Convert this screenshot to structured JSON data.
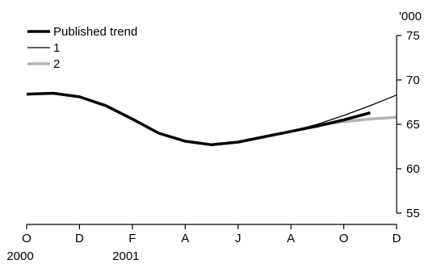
{
  "chart_data": {
    "type": "line",
    "y_unit": "'000",
    "ylim": [
      55,
      75
    ],
    "y_ticks": [
      55,
      60,
      65,
      70,
      75
    ],
    "y_axis_side": "right",
    "grid": false,
    "legend_position": "top-left",
    "x": [
      "2000-10",
      "2000-11",
      "2000-12",
      "2001-01",
      "2001-02",
      "2001-03",
      "2001-04",
      "2001-05",
      "2001-06",
      "2001-07",
      "2001-08",
      "2001-09",
      "2001-10",
      "2001-11",
      "2001-12"
    ],
    "x_ticks": [
      {
        "x": "2000-10",
        "label": "O"
      },
      {
        "x": "2000-12",
        "label": "D"
      },
      {
        "x": "2001-02",
        "label": "F"
      },
      {
        "x": "2001-04",
        "label": "A"
      },
      {
        "x": "2001-06",
        "label": "J"
      },
      {
        "x": "2001-08",
        "label": "A"
      },
      {
        "x": "2001-10",
        "label": "O"
      },
      {
        "x": "2001-12",
        "label": "D"
      }
    ],
    "year_labels": [
      {
        "x": "2000-10",
        "label": "2000"
      },
      {
        "x": "2001-02",
        "label": "2001"
      }
    ],
    "series": [
      {
        "name": "Published trend",
        "color": "#000000",
        "style": "thick",
        "values": [
          68.4,
          68.5,
          68.1,
          67.1,
          65.6,
          64.0,
          63.1,
          62.7,
          63.0,
          63.6,
          64.2,
          64.8,
          65.5,
          66.3,
          null
        ]
      },
      {
        "name": "1",
        "color": "#000000",
        "style": "thin",
        "values": [
          null,
          null,
          null,
          null,
          null,
          null,
          null,
          null,
          null,
          null,
          64.2,
          65.0,
          66.0,
          67.1,
          68.3
        ]
      },
      {
        "name": "2",
        "color": "#b4b4b4",
        "style": "thick",
        "values": [
          null,
          null,
          null,
          null,
          null,
          null,
          null,
          null,
          null,
          null,
          64.2,
          64.9,
          65.3,
          65.6,
          65.8
        ]
      }
    ]
  }
}
